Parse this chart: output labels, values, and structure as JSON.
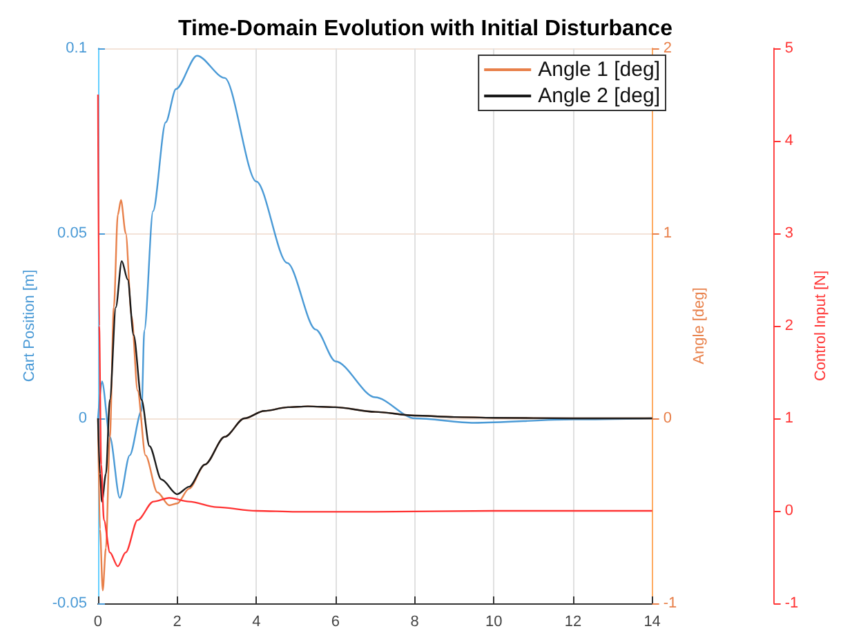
{
  "chart_data": {
    "type": "line",
    "title": "Time-Domain Evolution with Initial Disturbance",
    "ylabel": "Cart Position [m]",
    "y2label": "Angle [deg]",
    "y3label": "Control Input [N]",
    "xlim": [
      0,
      14
    ],
    "xticks": [
      0,
      2,
      4,
      6,
      8,
      10,
      12,
      14
    ],
    "ylim": [
      -0.05,
      0.1
    ],
    "yticks": [
      -0.05,
      0,
      0.05,
      0.1
    ],
    "y2lim": [
      -1,
      2
    ],
    "y2ticks": [
      -1,
      0,
      1,
      2
    ],
    "y3lim": [
      -1,
      5
    ],
    "y3ticks": [
      -1,
      0,
      1,
      2,
      3,
      4,
      5
    ],
    "grid": true,
    "legend": "top right",
    "marker": "none",
    "line_style": "solid",
    "series": [
      {
        "color": "#4a9ad6",
        "axis": "y",
        "x": [
          0,
          0.1,
          0.3,
          0.55,
          0.8,
          1.1,
          1.17,
          1.39,
          1.71,
          1.97,
          2.5,
          3.2,
          4,
          4.78,
          5.5,
          6,
          7,
          8,
          9.5,
          12,
          14
        ],
        "values": [
          0,
          0.01,
          -0.005,
          -0.0215,
          -0.01,
          0.002,
          0.0237,
          0.056,
          0.08,
          0.089,
          0.098,
          0.092,
          0.064,
          0.042,
          0.024,
          0.0154,
          0.0057,
          0,
          -0.0012,
          -0.0003,
          0
        ]
      },
      {
        "name": "Angle 1 [deg]",
        "color": "#e8804a",
        "axis": "y2",
        "x": [
          0,
          0.05,
          0.12,
          0.2,
          0.3,
          0.4,
          0.5,
          0.58,
          0.7,
          0.85,
          1,
          1.2,
          1.5,
          1.8,
          2,
          2.3,
          2.7,
          3.2,
          3.7,
          4.2,
          4.8,
          5.3,
          6,
          7,
          8,
          9,
          10,
          12,
          14
        ],
        "values": [
          0,
          -0.6,
          -0.93,
          -0.7,
          -0.1,
          0.6,
          1.1,
          1.18,
          1,
          0.55,
          0.15,
          -0.2,
          -0.4,
          -0.47,
          -0.46,
          -0.38,
          -0.25,
          -0.1,
          0,
          0.04,
          0.06,
          0.065,
          0.06,
          0.035,
          0.015,
          0.007,
          0.003,
          0,
          0
        ]
      },
      {
        "name": "Angle 2 [deg]",
        "color": "#1a1a1a",
        "axis": "y2",
        "x": [
          0,
          0.05,
          0.1,
          0.2,
          0.3,
          0.45,
          0.6,
          0.75,
          0.9,
          1.1,
          1.3,
          1.6,
          2,
          2.3,
          2.7,
          3.2,
          3.7,
          4.2,
          4.8,
          5.3,
          6,
          7,
          8,
          9,
          10,
          12,
          14
        ],
        "values": [
          0,
          -0.3,
          -0.45,
          -0.3,
          0.1,
          0.6,
          0.85,
          0.75,
          0.45,
          0.1,
          -0.15,
          -0.33,
          -0.41,
          -0.37,
          -0.25,
          -0.1,
          0,
          0.04,
          0.06,
          0.065,
          0.06,
          0.035,
          0.015,
          0.007,
          0.003,
          0,
          0
        ]
      },
      {
        "color": "#ff3333",
        "axis": "y3",
        "x": [
          0,
          0.03,
          0.08,
          0.15,
          0.3,
          0.5,
          0.7,
          1,
          1.4,
          1.8,
          2.3,
          3,
          4,
          5,
          7,
          10,
          14
        ],
        "values": [
          4.5,
          2,
          0.5,
          -0.1,
          -0.45,
          -0.6,
          -0.45,
          -0.1,
          0.1,
          0.14,
          0.1,
          0.04,
          0,
          -0.01,
          -0.01,
          0,
          0
        ]
      }
    ]
  }
}
